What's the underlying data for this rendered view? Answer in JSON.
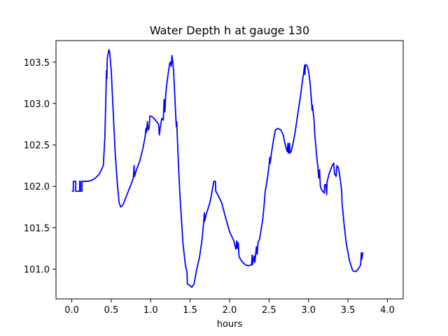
{
  "chart_data": {
    "type": "line",
    "title": "Water Depth h at gauge 130",
    "xlabel": "hours",
    "ylabel": "",
    "xlim": [
      -0.2,
      4.2
    ],
    "ylim": [
      100.64,
      103.76
    ],
    "x_ticks": [
      0.0,
      0.5,
      1.0,
      1.5,
      2.0,
      2.5,
      3.0,
      3.5,
      4.0
    ],
    "x_tick_labels": [
      "0.0",
      "0.5",
      "1.0",
      "1.5",
      "2.0",
      "2.5",
      "3.0",
      "3.5",
      "4.0"
    ],
    "y_ticks": [
      101.0,
      101.5,
      102.0,
      102.5,
      103.0,
      103.5
    ],
    "y_tick_labels": [
      "101.0",
      "101.5",
      "102.0",
      "102.5",
      "103.0",
      "103.5"
    ],
    "grid": false,
    "legend": "none",
    "series": [
      {
        "color": "#0000ff",
        "points": [
          [
            0.0,
            101.94
          ],
          [
            0.02,
            101.94
          ],
          [
            0.02,
            102.06
          ],
          [
            0.05,
            102.06
          ],
          [
            0.05,
            101.94
          ],
          [
            0.1,
            101.94
          ],
          [
            0.1,
            102.06
          ],
          [
            0.11,
            102.06
          ],
          [
            0.11,
            101.94
          ],
          [
            0.13,
            101.94
          ],
          [
            0.13,
            102.06
          ],
          [
            0.2,
            102.06
          ],
          [
            0.25,
            102.07
          ],
          [
            0.3,
            102.1
          ],
          [
            0.35,
            102.15
          ],
          [
            0.4,
            102.25
          ],
          [
            0.42,
            102.6
          ],
          [
            0.43,
            103.0
          ],
          [
            0.44,
            103.4
          ],
          [
            0.445,
            103.3
          ],
          [
            0.45,
            103.55
          ],
          [
            0.47,
            103.65
          ],
          [
            0.48,
            103.62
          ],
          [
            0.5,
            103.4
          ],
          [
            0.53,
            102.8
          ],
          [
            0.55,
            102.4
          ],
          [
            0.58,
            102.0
          ],
          [
            0.6,
            101.8
          ],
          [
            0.62,
            101.75
          ],
          [
            0.65,
            101.78
          ],
          [
            0.7,
            101.9
          ],
          [
            0.75,
            102.02
          ],
          [
            0.78,
            102.1
          ],
          [
            0.79,
            102.25
          ],
          [
            0.795,
            102.12
          ],
          [
            0.82,
            102.2
          ],
          [
            0.86,
            102.3
          ],
          [
            0.9,
            102.45
          ],
          [
            0.93,
            102.6
          ],
          [
            0.94,
            102.7
          ],
          [
            0.945,
            102.65
          ],
          [
            0.96,
            102.78
          ],
          [
            0.965,
            102.68
          ],
          [
            0.98,
            102.7
          ],
          [
            0.99,
            102.85
          ],
          [
            1.02,
            102.84
          ],
          [
            1.06,
            102.8
          ],
          [
            1.1,
            102.75
          ],
          [
            1.11,
            102.62
          ],
          [
            1.12,
            102.7
          ],
          [
            1.14,
            102.82
          ],
          [
            1.16,
            102.8
          ],
          [
            1.17,
            103.05
          ],
          [
            1.18,
            102.9
          ],
          [
            1.19,
            103.1
          ],
          [
            1.2,
            103.2
          ],
          [
            1.22,
            103.35
          ],
          [
            1.24,
            103.48
          ],
          [
            1.25,
            103.5
          ],
          [
            1.26,
            103.45
          ],
          [
            1.27,
            103.58
          ],
          [
            1.28,
            103.5
          ],
          [
            1.29,
            103.4
          ],
          [
            1.3,
            103.2
          ],
          [
            1.31,
            103.0
          ],
          [
            1.32,
            102.8
          ],
          [
            1.325,
            102.72
          ],
          [
            1.33,
            102.78
          ],
          [
            1.35,
            102.3
          ],
          [
            1.37,
            101.9
          ],
          [
            1.39,
            101.6
          ],
          [
            1.41,
            101.3
          ],
          [
            1.44,
            101.05
          ],
          [
            1.46,
            100.96
          ],
          [
            1.465,
            100.82
          ],
          [
            1.5,
            100.8
          ],
          [
            1.52,
            100.78
          ],
          [
            1.55,
            100.82
          ],
          [
            1.58,
            100.98
          ],
          [
            1.62,
            101.15
          ],
          [
            1.65,
            101.35
          ],
          [
            1.67,
            101.55
          ],
          [
            1.68,
            101.68
          ],
          [
            1.685,
            101.58
          ],
          [
            1.7,
            101.65
          ],
          [
            1.75,
            101.8
          ],
          [
            1.78,
            101.95
          ],
          [
            1.8,
            102.06
          ],
          [
            1.82,
            102.06
          ],
          [
            1.825,
            101.94
          ],
          [
            1.85,
            101.9
          ],
          [
            1.9,
            101.8
          ],
          [
            1.95,
            101.62
          ],
          [
            2.0,
            101.45
          ],
          [
            2.05,
            101.35
          ],
          [
            2.08,
            101.24
          ],
          [
            2.09,
            101.34
          ],
          [
            2.1,
            101.25
          ],
          [
            2.11,
            101.32
          ],
          [
            2.12,
            101.15
          ],
          [
            2.15,
            101.1
          ],
          [
            2.2,
            101.05
          ],
          [
            2.25,
            101.04
          ],
          [
            2.28,
            101.06
          ],
          [
            2.285,
            101.17
          ],
          [
            2.29,
            101.05
          ],
          [
            2.31,
            101.16
          ],
          [
            2.32,
            101.08
          ],
          [
            2.34,
            101.27
          ],
          [
            2.35,
            101.18
          ],
          [
            2.36,
            101.32
          ],
          [
            2.38,
            101.36
          ],
          [
            2.42,
            101.6
          ],
          [
            2.44,
            101.8
          ],
          [
            2.45,
            101.93
          ],
          [
            2.48,
            102.1
          ],
          [
            2.5,
            102.25
          ],
          [
            2.51,
            102.35
          ],
          [
            2.515,
            102.28
          ],
          [
            2.53,
            102.4
          ],
          [
            2.56,
            102.58
          ],
          [
            2.58,
            102.68
          ],
          [
            2.61,
            102.7
          ],
          [
            2.65,
            102.68
          ],
          [
            2.68,
            102.62
          ],
          [
            2.7,
            102.52
          ],
          [
            2.72,
            102.45
          ],
          [
            2.73,
            102.42
          ],
          [
            2.74,
            102.52
          ],
          [
            2.745,
            102.4
          ],
          [
            2.76,
            102.52
          ],
          [
            2.765,
            102.4
          ],
          [
            2.78,
            102.42
          ],
          [
            2.8,
            102.5
          ],
          [
            2.83,
            102.65
          ],
          [
            2.86,
            102.85
          ],
          [
            2.9,
            103.1
          ],
          [
            2.92,
            103.25
          ],
          [
            2.94,
            103.38
          ],
          [
            2.95,
            103.46
          ],
          [
            2.955,
            103.35
          ],
          [
            2.96,
            103.47
          ],
          [
            2.98,
            103.46
          ],
          [
            3.0,
            103.4
          ],
          [
            3.02,
            103.25
          ],
          [
            3.04,
            103.0
          ],
          [
            3.045,
            102.92
          ],
          [
            3.05,
            102.98
          ],
          [
            3.07,
            102.8
          ],
          [
            3.08,
            102.62
          ],
          [
            3.09,
            102.52
          ],
          [
            3.1,
            102.4
          ],
          [
            3.12,
            102.22
          ],
          [
            3.13,
            102.1
          ],
          [
            3.14,
            102.2
          ],
          [
            3.15,
            102.0
          ],
          [
            3.17,
            101.95
          ],
          [
            3.2,
            101.92
          ],
          [
            3.205,
            102.02
          ],
          [
            3.22,
            102.02
          ],
          [
            3.23,
            101.9
          ],
          [
            3.235,
            102.05
          ],
          [
            3.26,
            102.15
          ],
          [
            3.3,
            102.25
          ],
          [
            3.32,
            102.28
          ],
          [
            3.33,
            102.15
          ],
          [
            3.35,
            102.12
          ],
          [
            3.36,
            102.25
          ],
          [
            3.38,
            102.22
          ],
          [
            3.4,
            102.1
          ],
          [
            3.42,
            101.95
          ],
          [
            3.425,
            101.8
          ],
          [
            3.45,
            101.55
          ],
          [
            3.48,
            101.3
          ],
          [
            3.52,
            101.1
          ],
          [
            3.56,
            100.98
          ],
          [
            3.6,
            100.97
          ],
          [
            3.63,
            101.0
          ],
          [
            3.66,
            101.05
          ],
          [
            3.67,
            101.2
          ],
          [
            3.675,
            101.12
          ],
          [
            3.69,
            101.2
          ]
        ]
      }
    ]
  }
}
